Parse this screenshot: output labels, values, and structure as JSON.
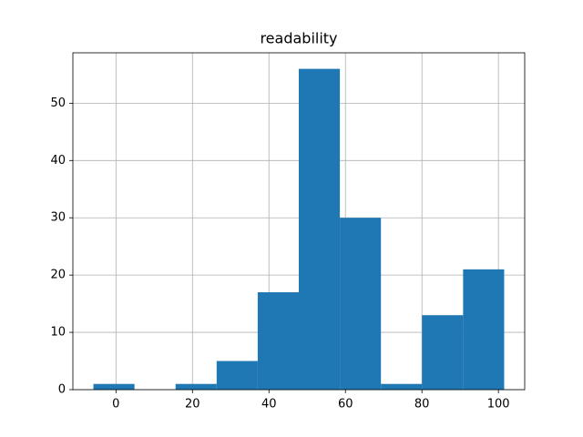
{
  "chart_data": {
    "type": "histogram",
    "title": "readability",
    "bins": [
      -5.9,
      4.84,
      15.58,
      26.32,
      37.06,
      47.8,
      58.54,
      69.28,
      80.02,
      90.76,
      101.5
    ],
    "values": [
      1,
      0,
      1,
      5,
      17,
      56,
      30,
      1,
      13,
      21
    ],
    "color": "#1f77b4",
    "xlim": [
      -11.27,
      106.87
    ],
    "xticks": [
      0,
      20,
      40,
      60,
      80,
      100
    ],
    "ylim": [
      0,
      58.8
    ],
    "yticks": [
      0,
      10,
      20,
      30,
      40,
      50
    ],
    "grid": true
  }
}
